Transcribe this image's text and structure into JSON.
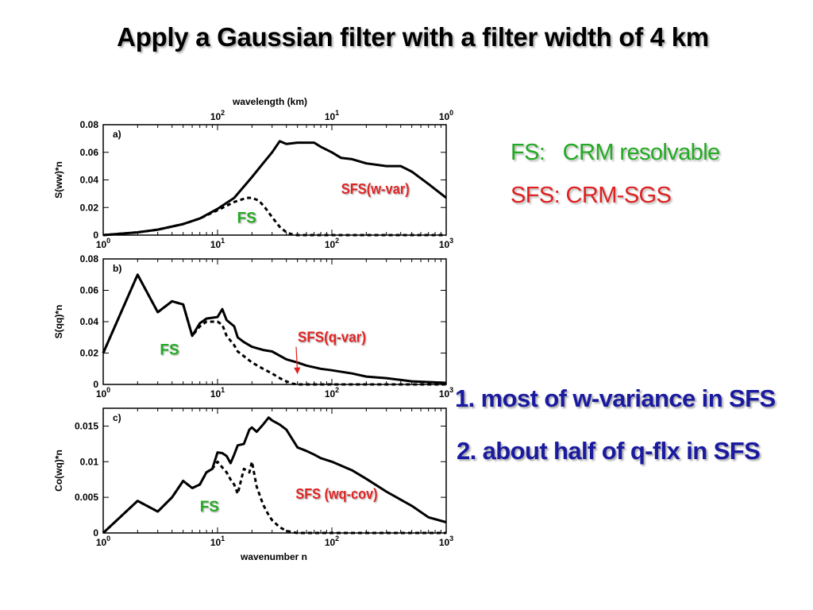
{
  "slide": {
    "title": "Apply a Gaussian filter with a filter width of 4 km",
    "legend": {
      "fs_label": "FS:   CRM resolvable",
      "sfs_label": "SFS: CRM-SGS",
      "fs_color": "#22aa22",
      "sfs_color": "#e02020"
    },
    "conclusions": [
      "1. most of w-variance in SFS",
      "2. about half of q-flx in SFS"
    ],
    "conclusion_color": "#1a1aa0"
  },
  "chart_data": [
    {
      "type": "line",
      "panel_label": "a)",
      "ylabel": "S(ww)*n",
      "x_scale": "log",
      "xlim": [
        1,
        1000
      ],
      "ylim": [
        0,
        0.08
      ],
      "yticks": [
        0,
        0.02,
        0.04,
        0.06,
        0.08
      ],
      "ytick_labels": [
        "0",
        "0.02",
        "0.04",
        "0.06",
        "0.08"
      ],
      "top_axis": {
        "label": "wavelength (km)",
        "ticks": [
          100,
          10,
          1
        ],
        "tick_bases": [
          "10",
          "10",
          "10"
        ],
        "tick_exps": [
          "2",
          "1",
          "0"
        ]
      },
      "series": [
        {
          "style": "solid",
          "x": [
            1,
            2,
            3,
            5,
            7,
            10,
            14,
            20,
            25,
            30,
            35,
            40,
            50,
            60,
            70,
            80,
            100,
            120,
            150,
            200,
            300,
            400,
            500,
            700,
            1000
          ],
          "y": [
            0.0,
            0.002,
            0.004,
            0.008,
            0.012,
            0.019,
            0.027,
            0.042,
            0.052,
            0.06,
            0.068,
            0.066,
            0.067,
            0.067,
            0.067,
            0.064,
            0.06,
            0.056,
            0.055,
            0.052,
            0.05,
            0.05,
            0.046,
            0.037,
            0.027
          ]
        },
        {
          "style": "dashed",
          "x": [
            1,
            2,
            3,
            5,
            7,
            10,
            14,
            18,
            20,
            23,
            26,
            30,
            35,
            40,
            45,
            50,
            60,
            80,
            1000
          ],
          "y": [
            0.0,
            0.002,
            0.004,
            0.008,
            0.012,
            0.018,
            0.024,
            0.027,
            0.027,
            0.025,
            0.02,
            0.013,
            0.006,
            0.002,
            0.0005,
            0.0,
            0.0,
            0.0,
            0.0
          ]
        }
      ],
      "annotations": [
        {
          "text": "FS",
          "x": 18,
          "y": 0.009,
          "color": "#22aa22"
        },
        {
          "text": "SFS(w-var)",
          "x": 240,
          "y": 0.03,
          "color": "#e02020"
        }
      ]
    },
    {
      "type": "line",
      "panel_label": "b)",
      "ylabel": "S(qq)*n",
      "x_scale": "log",
      "xlim": [
        1,
        1000
      ],
      "ylim": [
        0,
        0.08
      ],
      "yticks": [
        0,
        0.02,
        0.04,
        0.06,
        0.08
      ],
      "ytick_labels": [
        "0",
        "0.02",
        "0.04",
        "0.06",
        "0.08"
      ],
      "series": [
        {
          "style": "solid",
          "x": [
            1,
            2,
            3,
            4,
            5,
            6,
            7,
            8,
            10,
            11,
            12,
            14,
            15,
            17,
            20,
            25,
            30,
            40,
            50,
            60,
            80,
            100,
            150,
            200,
            300,
            500,
            1000
          ],
          "y": [
            0.02,
            0.07,
            0.046,
            0.053,
            0.051,
            0.031,
            0.039,
            0.042,
            0.043,
            0.048,
            0.041,
            0.037,
            0.03,
            0.027,
            0.024,
            0.022,
            0.021,
            0.016,
            0.014,
            0.012,
            0.01,
            0.009,
            0.007,
            0.005,
            0.004,
            0.002,
            0.001
          ]
        },
        {
          "style": "dashed",
          "x": [
            1,
            2,
            3,
            4,
            5,
            6,
            7,
            8,
            10,
            11,
            12,
            14,
            15,
            17,
            20,
            25,
            30,
            35,
            40,
            45,
            50,
            60,
            1000
          ],
          "y": [
            0.02,
            0.07,
            0.046,
            0.053,
            0.051,
            0.031,
            0.037,
            0.04,
            0.04,
            0.038,
            0.031,
            0.025,
            0.021,
            0.018,
            0.014,
            0.01,
            0.007,
            0.004,
            0.002,
            0.0005,
            0.0,
            0.0,
            0.0
          ]
        }
      ],
      "annotations": [
        {
          "text": "FS",
          "x": 3.8,
          "y": 0.019,
          "color": "#22aa22"
        },
        {
          "text": "SFS(q-var)",
          "x": 100,
          "y": 0.027,
          "color": "#e02020",
          "arrow_to": [
            50,
            0.007
          ]
        }
      ]
    },
    {
      "type": "line",
      "panel_label": "c)",
      "ylabel": "Co(wq)*n",
      "xlabel": "wavenumber n",
      "x_scale": "log",
      "xlim": [
        1,
        1000
      ],
      "ylim": [
        0,
        0.0175
      ],
      "yticks": [
        0,
        0.005,
        0.01,
        0.015
      ],
      "ytick_labels": [
        "0",
        "0.005",
        "0.01",
        "0.015"
      ],
      "series": [
        {
          "style": "solid",
          "x": [
            1,
            2,
            3,
            4,
            5,
            6,
            7,
            8,
            9,
            10,
            11,
            12,
            13,
            14,
            15,
            17,
            19,
            20,
            22,
            25,
            28,
            30,
            35,
            40,
            50,
            60,
            70,
            80,
            100,
            150,
            200,
            300,
            500,
            700,
            1000
          ],
          "y": [
            0.0,
            0.0045,
            0.003,
            0.005,
            0.0073,
            0.0063,
            0.0068,
            0.0085,
            0.009,
            0.0113,
            0.0112,
            0.0108,
            0.0098,
            0.011,
            0.0123,
            0.0125,
            0.0145,
            0.0148,
            0.0142,
            0.0152,
            0.0162,
            0.0158,
            0.0152,
            0.0145,
            0.012,
            0.0115,
            0.011,
            0.0105,
            0.01,
            0.0088,
            0.0076,
            0.0058,
            0.0038,
            0.0022,
            0.0015
          ]
        },
        {
          "style": "dashed",
          "x": [
            1,
            2,
            3,
            4,
            5,
            6,
            7,
            8,
            9,
            10,
            11,
            12,
            13,
            14,
            15,
            17,
            19,
            20,
            22,
            25,
            28,
            30,
            35,
            40,
            45,
            50,
            60,
            1000
          ],
          "y": [
            0.0,
            0.0045,
            0.003,
            0.005,
            0.0073,
            0.0063,
            0.0068,
            0.0085,
            0.009,
            0.01,
            0.0092,
            0.0085,
            0.0075,
            0.0068,
            0.0055,
            0.009,
            0.0085,
            0.01,
            0.0065,
            0.004,
            0.0025,
            0.0018,
            0.0008,
            0.0003,
            0.0001,
            0.0,
            0.0,
            0.0
          ]
        }
      ],
      "annotations": [
        {
          "text": "FS",
          "x": 8.5,
          "y": 0.003,
          "color": "#22aa22"
        },
        {
          "text": "SFS (wq-cov)",
          "x": 110,
          "y": 0.0048,
          "color": "#e02020"
        }
      ]
    }
  ]
}
